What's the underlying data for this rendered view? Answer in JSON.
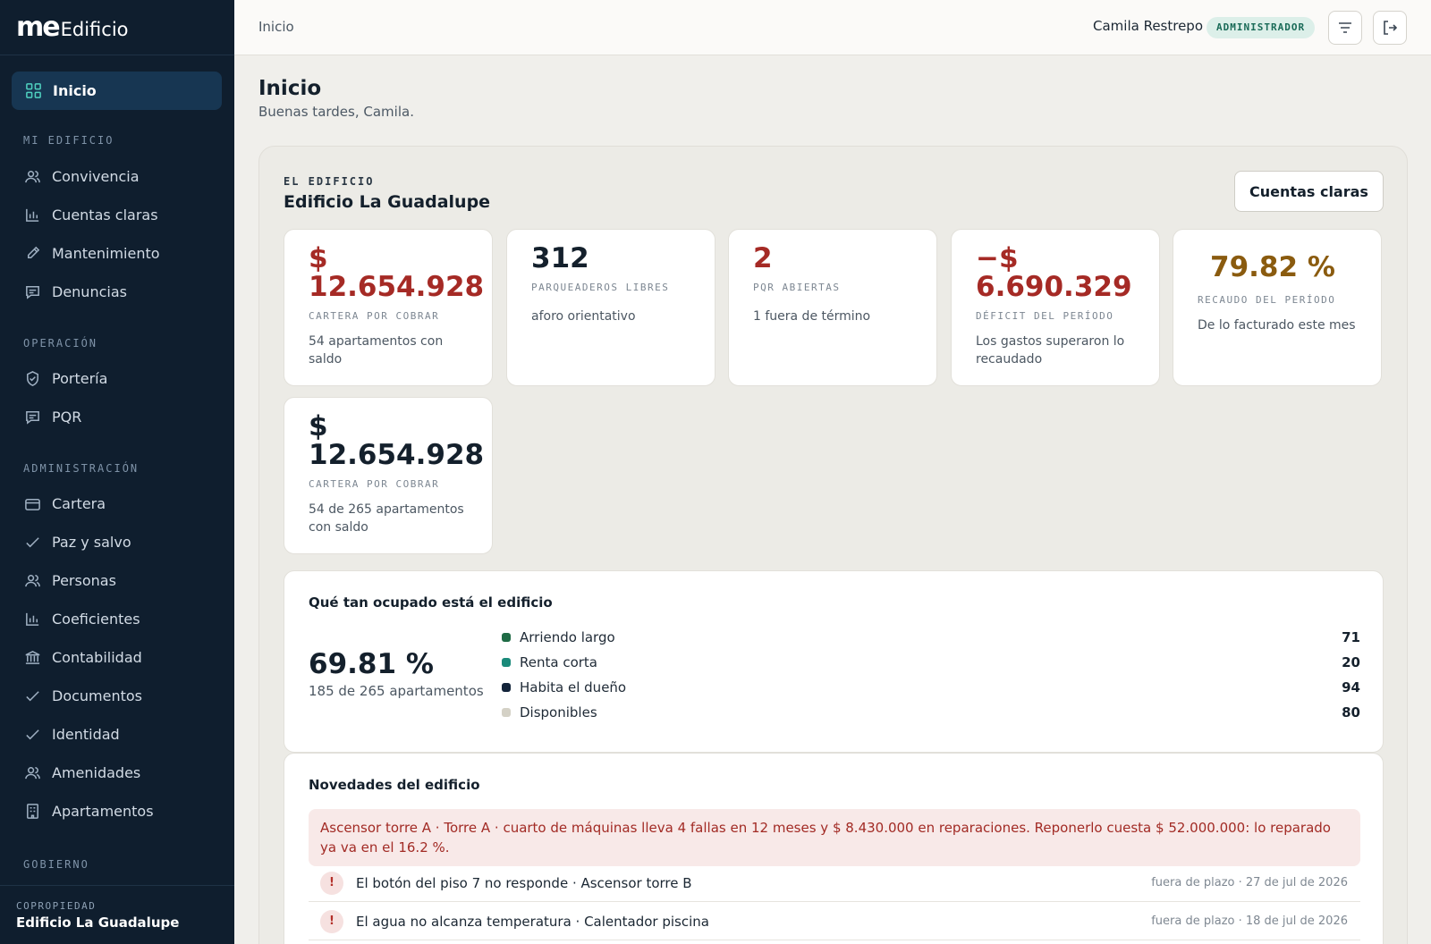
{
  "app": {
    "logo_mark": "me",
    "logo_word": "Edificio"
  },
  "sidebar": {
    "active": {
      "label": "Inicio",
      "icon": "grid-icon"
    },
    "sections": {
      "mi_edificio": "MI EDIFICIO",
      "operacion": "OPERACIÓN",
      "administracion": "ADMINISTRACIÓN",
      "gobierno": "GOBIERNO"
    },
    "items": {
      "convivencia": "Convivencia",
      "cuentas_claras": "Cuentas claras",
      "mantenimiento": "Mantenimiento",
      "denuncias": "Denuncias",
      "porteria": "Portería",
      "pqr": "PQR",
      "cartera": "Cartera",
      "paz_y_salvo": "Paz y salvo",
      "personas": "Personas",
      "coeficientes": "Coeficientes",
      "contabilidad": "Contabilidad",
      "documentos": "Documentos",
      "identidad": "Identidad",
      "amenidades": "Amenidades",
      "apartamentos": "Apartamentos"
    },
    "footer": {
      "caption": "COPROPIEDAD",
      "name": "Edificio La Guadalupe"
    }
  },
  "topbar": {
    "breadcrumb": "Inicio",
    "user_name": "Camila Restrepo",
    "role": "ADMINISTRADOR"
  },
  "main": {
    "title": "Inicio",
    "greeting": "Buenas tardes, Camila.",
    "eyebrow": "EL EDIFICIO",
    "building": "Edificio La Guadalupe",
    "cuentas_button": "Cuentas claras",
    "cards": [
      {
        "value": "$ 12.654.928",
        "label": "CARTERA POR COBRAR",
        "desc": "54 apartamentos con saldo"
      },
      {
        "value": "312",
        "label": "PARQUEADEROS LIBRES",
        "desc": "aforo orientativo"
      },
      {
        "value": "2",
        "label": "PQR ABIERTAS",
        "desc": "1 fuera de término"
      },
      {
        "value": "−$ 6.690.329",
        "label": "DÉFICIT DEL PERÍODO",
        "desc": "Los gastos superaron lo recaudado"
      },
      {
        "value": "79.82 %",
        "label": "RECAUDO DEL PERÍODO",
        "desc": "De lo facturado este mes"
      },
      {
        "value": "$ 12.654.928",
        "label": "CARTERA POR COBRAR",
        "desc": "54 de 265 apartamentos con saldo"
      }
    ],
    "occupancy": {
      "title": "Qué tan ocupado está el edificio",
      "percent": "69.81 %",
      "subtitle": "185 de 265 apartamentos",
      "legend": [
        {
          "name": "Arriendo largo",
          "count": "71",
          "color": "#1f6b45"
        },
        {
          "name": "Renta corta",
          "count": "20",
          "color": "#1a8a7a"
        },
        {
          "name": "Habita el dueño",
          "count": "94",
          "color": "#13243a"
        },
        {
          "name": "Disponibles",
          "count": "80",
          "color": "#d4d1c6"
        }
      ]
    },
    "news": {
      "title": "Novedades del edificio",
      "alert": "Ascensor torre A · Torre A · cuarto de máquinas lleva 4 fallas en 12 meses y $ 8.430.000 en reparaciones. Reponerlo cuesta $ 52.000.000: lo reparado ya va en el 16.2 %.",
      "items": [
        {
          "text": "El botón del piso 7 no responde · Ascensor torre B",
          "meta": "fuera de plazo · 27 de jul de 2026"
        },
        {
          "text": "El agua no alcanza temperatura · Calentador piscina",
          "meta": "fuera de plazo · 18 de jul de 2026"
        }
      ]
    }
  }
}
